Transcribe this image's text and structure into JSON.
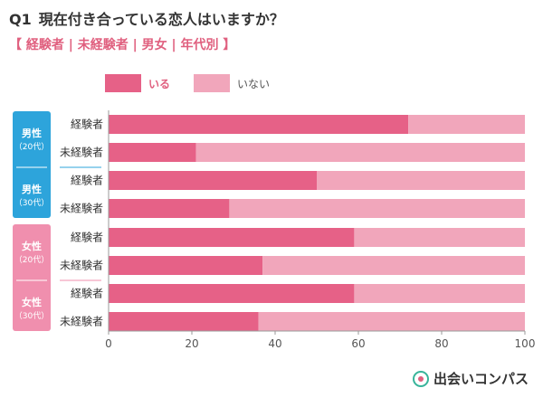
{
  "title_q": "Q1",
  "title_text": "現在付き合っている恋人はいますか？",
  "subtitle": "【 経験者 | 未経験者 | 男女 | 年代別 】",
  "logo_text": "出会いコンパス",
  "colors": {
    "iru": "#e66187",
    "inai": "#f1a6bb",
    "male": "#2da4db",
    "female": "#f08fae"
  },
  "chart_data": {
    "type": "bar",
    "orientation": "horizontal",
    "stacked": true,
    "categories": [
      "経験者",
      "未経験者",
      "経験者",
      "未経験者",
      "経験者",
      "未経験者",
      "経験者",
      "未経験者"
    ],
    "groups": [
      {
        "line1": "男性",
        "line2": "（20代）",
        "rows": [
          0,
          1
        ],
        "color": "#2da4db"
      },
      {
        "line1": "男性",
        "line2": "（30代）",
        "rows": [
          2,
          3
        ],
        "color": "#2da4db"
      },
      {
        "line1": "女性",
        "line2": "（20代）",
        "rows": [
          4,
          5
        ],
        "color": "#f08fae"
      },
      {
        "line1": "女性",
        "line2": "（30代）",
        "rows": [
          6,
          7
        ],
        "color": "#f08fae"
      }
    ],
    "series": [
      {
        "name": "いる",
        "values": [
          72,
          21,
          50,
          29,
          59,
          37,
          59,
          36
        ]
      },
      {
        "name": "いない",
        "values": [
          28,
          79,
          50,
          71,
          41,
          63,
          41,
          64
        ]
      }
    ],
    "xlim": [
      0,
      100
    ],
    "xticks": [
      "0",
      "20",
      "40",
      "60",
      "80",
      "100"
    ],
    "legend_position": "top"
  }
}
